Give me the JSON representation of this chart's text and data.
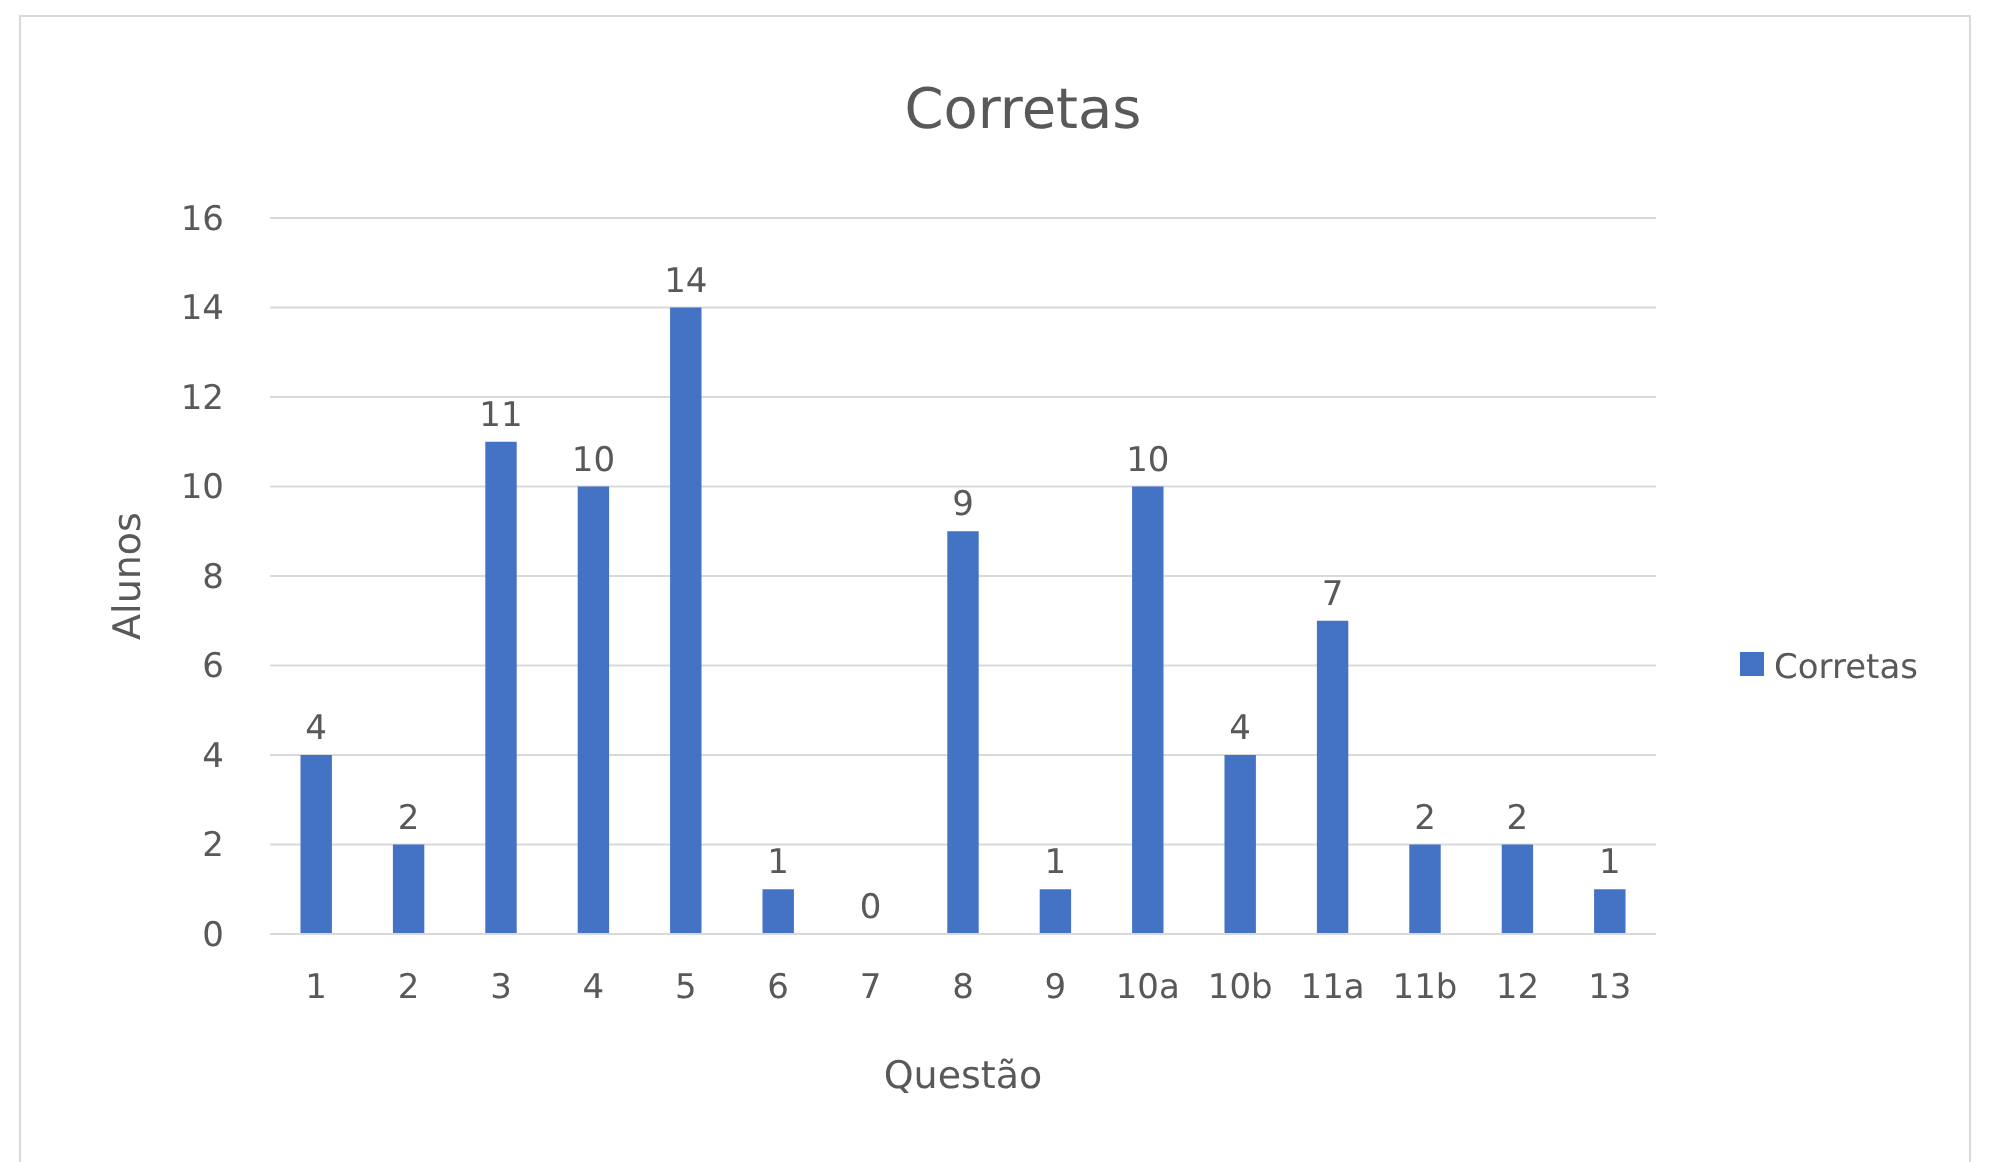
{
  "chart_data": {
    "type": "bar",
    "title": "Corretas",
    "xlabel": "Questão",
    "ylabel": "Alunos",
    "categories": [
      "1",
      "2",
      "3",
      "4",
      "5",
      "6",
      "7",
      "8",
      "9",
      "10a",
      "10b",
      "11a",
      "11b",
      "12",
      "13"
    ],
    "series": [
      {
        "name": "Corretas",
        "color": "#4472c4",
        "values": [
          4,
          2,
          11,
          10,
          14,
          1,
          0,
          9,
          1,
          10,
          4,
          7,
          2,
          2,
          1
        ]
      }
    ],
    "ylim": [
      0,
      16
    ],
    "yticks": [
      0,
      2,
      4,
      6,
      8,
      10,
      12,
      14,
      16
    ],
    "grid": "y",
    "legend": "right",
    "data_labels": true
  }
}
